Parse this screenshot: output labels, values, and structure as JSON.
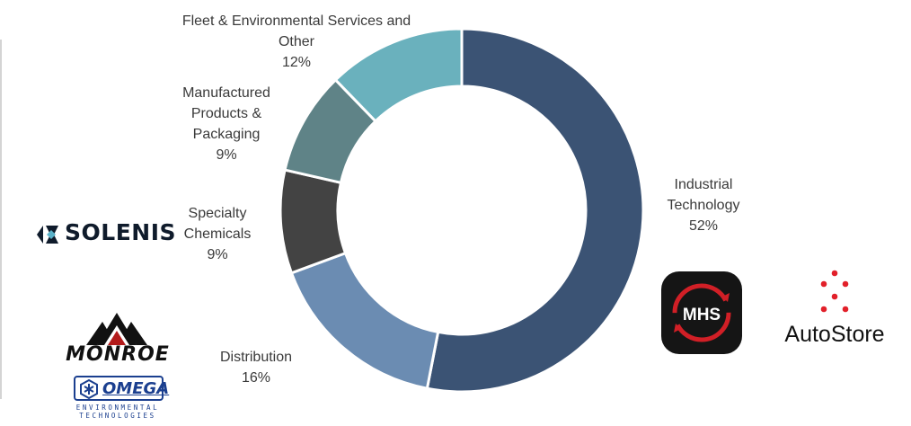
{
  "chart_data": {
    "type": "pie",
    "donut": true,
    "slices": [
      {
        "label_lines": [
          "Industrial",
          "Technology"
        ],
        "value": 52,
        "value_label": "52%",
        "color": "#3b5374"
      },
      {
        "label_lines": [
          "Distribution"
        ],
        "value": 16,
        "value_label": "16%",
        "color": "#6b8cb2"
      },
      {
        "label_lines": [
          "Specialty",
          "Chemicals"
        ],
        "value": 9,
        "value_label": "9%",
        "color": "#434343"
      },
      {
        "label_lines": [
          "Manufactured",
          "Products &",
          "Packaging"
        ],
        "value": 9,
        "value_label": "9%",
        "color": "#5f8387"
      },
      {
        "label_lines": [
          "Fleet & Environmental Services and",
          "Other"
        ],
        "value": 12,
        "value_label": "12%",
        "color": "#6ab1bd"
      }
    ]
  },
  "logos": {
    "solenis": "SOLENIS",
    "monroe": "MONROE",
    "omega": "OMEGA",
    "omega_sub_1": "ENVIRONMENTAL",
    "omega_sub_2": "TECHNOLOGIES",
    "mhs": "MHS",
    "autostore": "AutoStore"
  }
}
